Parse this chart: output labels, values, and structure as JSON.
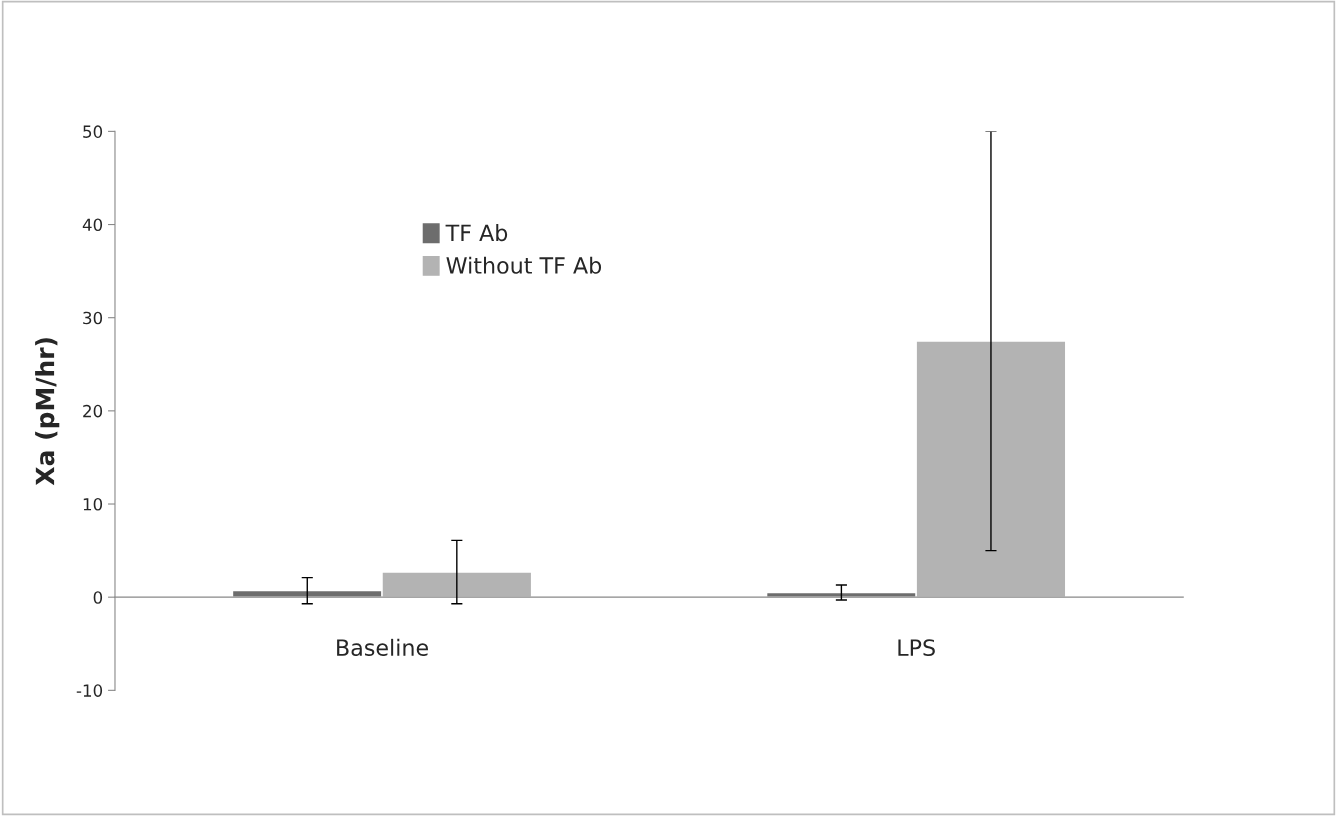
{
  "chart_data": {
    "type": "bar",
    "ylabel": "Xa (pM/hr)",
    "categories": [
      "Baseline",
      "LPS"
    ],
    "series": [
      {
        "name": "TF Ab",
        "color": "#6d6d6d",
        "values": [
          0.7,
          0.5
        ],
        "errors": [
          1.4,
          0.8
        ]
      },
      {
        "name": "Without TF Ab",
        "color": "#b3b3b3",
        "values": [
          2.7,
          27.5
        ],
        "errors": [
          3.4,
          22.5
        ]
      }
    ],
    "ylim": [
      -10,
      50
    ],
    "yticks": [
      -10,
      0,
      10,
      20,
      30,
      40,
      50
    ],
    "grid": false,
    "legend": "top left"
  }
}
